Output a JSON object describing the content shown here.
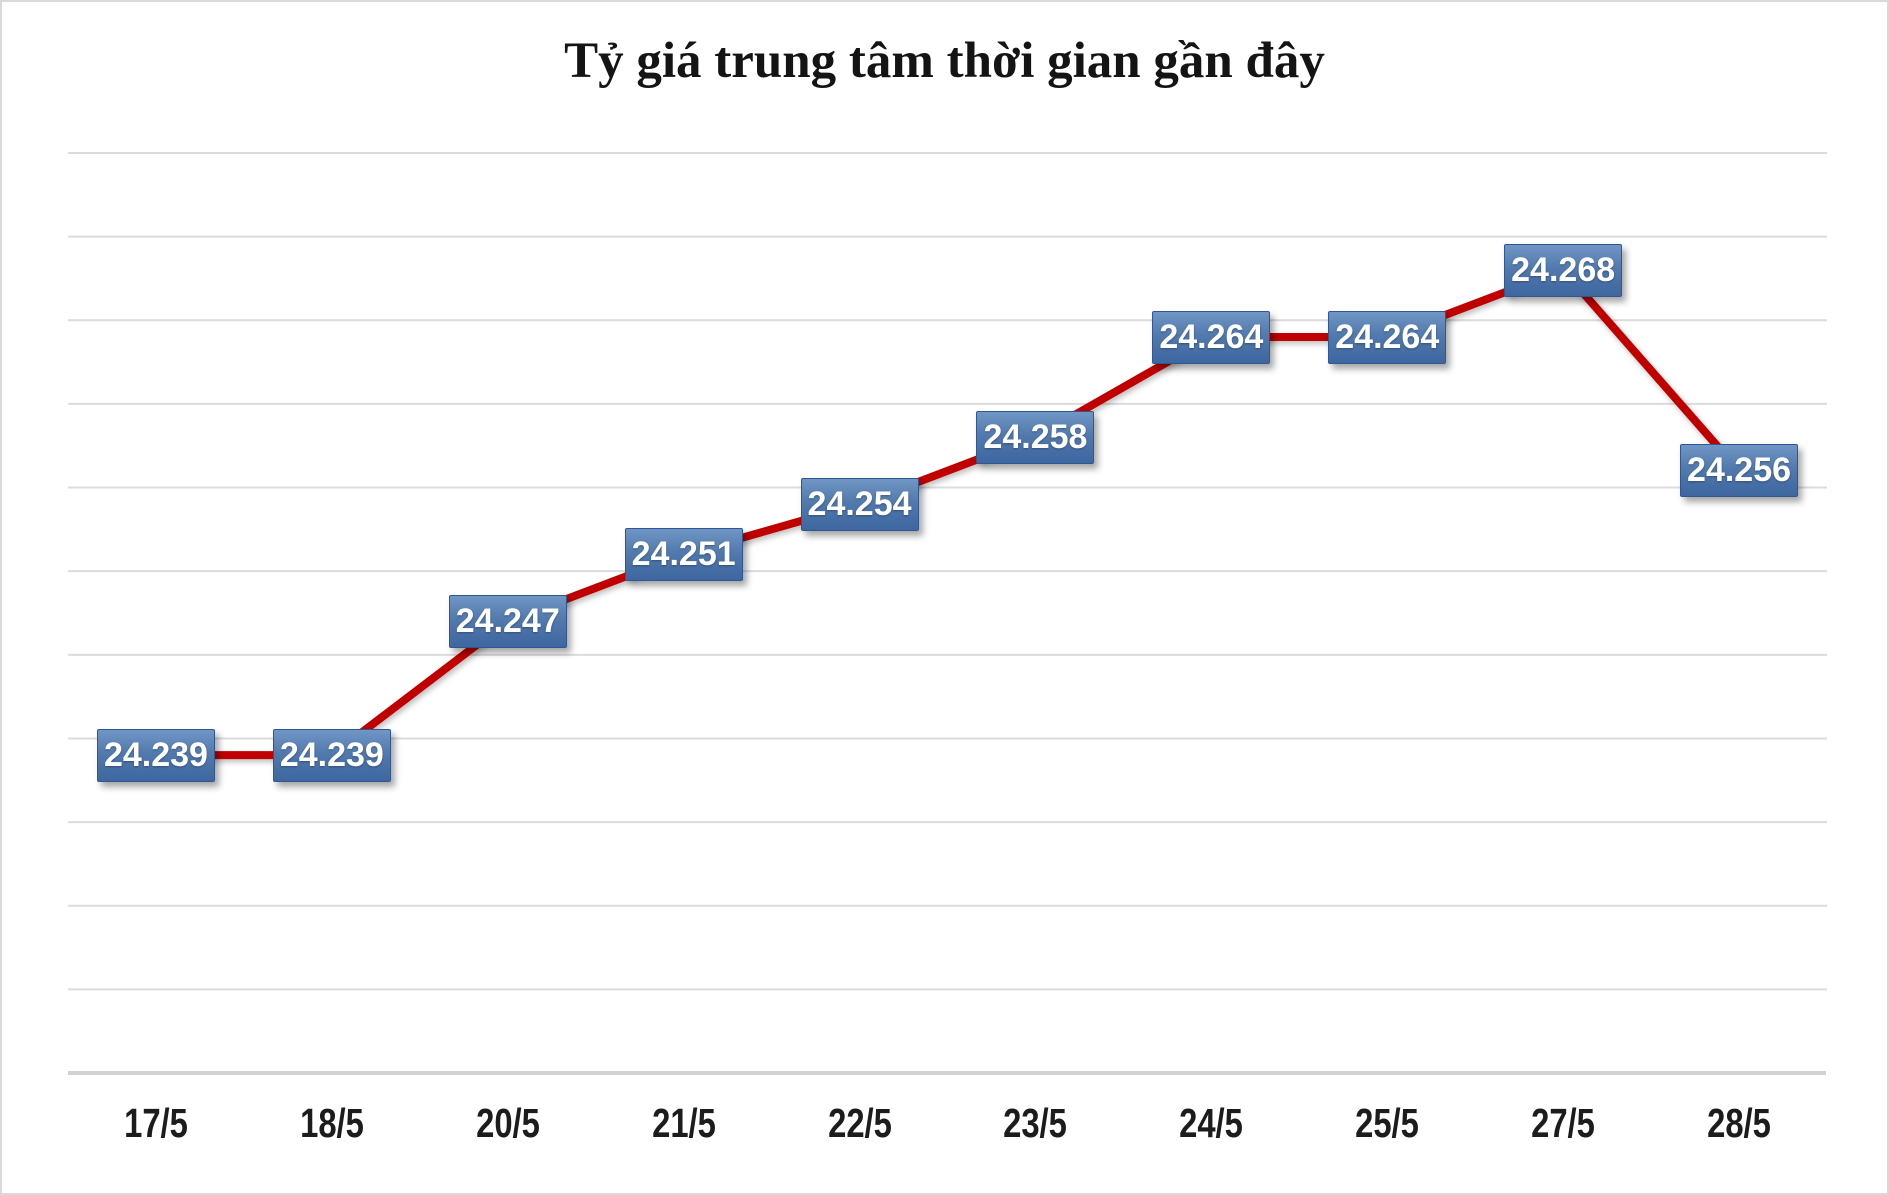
{
  "title": "Tỷ giá trung tâm thời gian gần đây",
  "chart_data": {
    "type": "line",
    "title": "Tỷ giá trung tâm thời gian gần đây",
    "categories": [
      "17/5",
      "18/5",
      "20/5",
      "21/5",
      "22/5",
      "23/5",
      "24/5",
      "25/5",
      "27/5",
      "28/5"
    ],
    "values": [
      24.239,
      24.239,
      24.247,
      24.251,
      24.254,
      24.258,
      24.264,
      24.264,
      24.268,
      24.256
    ],
    "data_labels": [
      "24.239",
      "24.239",
      "24.247",
      "24.251",
      "24.254",
      "24.258",
      "24.264",
      "24.264",
      "24.268",
      "24.256"
    ],
    "xlabel": "",
    "ylabel": "",
    "ylim": [
      24.22,
      24.275
    ],
    "grid": true,
    "grid_step": 0.005,
    "legend": false,
    "series_name": "Tỷ giá trung tâm",
    "colors": {
      "line": "#c00000",
      "label_box_top": "#7096c5",
      "label_box_bottom": "#3e66a0",
      "label_box_border": "#2f5790",
      "label_text": "#ffffff",
      "gridline": "#dcdcdc",
      "axis_line": "#d2d2d2",
      "tick_text": "#1c1c1c",
      "title_text": "#141414",
      "frame_border": "#d9d9d9"
    }
  }
}
